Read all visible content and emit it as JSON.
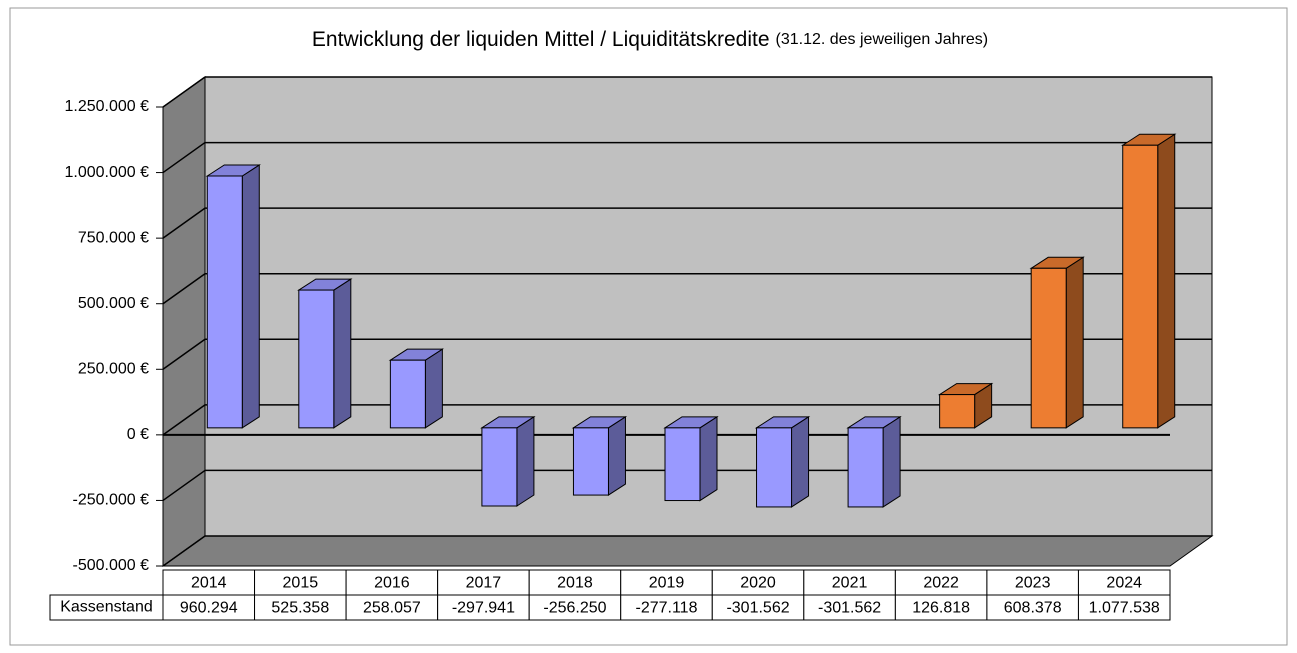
{
  "chart_data": {
    "type": "bar",
    "title": "Entwicklung der liquiden Mittel / Liquiditätskredite",
    "subtitle": "(31.12. des jeweiligen Jahres)",
    "categories": [
      "2014",
      "2015",
      "2016",
      "2017",
      "2018",
      "2019",
      "2020",
      "2021",
      "2022",
      "2023",
      "2024"
    ],
    "series": [
      {
        "name": "Kassenstand",
        "values": [
          960294,
          525358,
          258057,
          -297941,
          -256250,
          -277118,
          -301562,
          -301562,
          126818,
          608378,
          1077538
        ],
        "value_labels": [
          "960.294",
          "525.358",
          "258.057",
          "-297.941",
          "-256.250",
          "-277.118",
          "-301.562",
          "-301.562",
          "126.818",
          "608.378",
          "1.077.538"
        ],
        "colors": [
          "#9999ff",
          "#9999ff",
          "#9999ff",
          "#9999ff",
          "#9999ff",
          "#9999ff",
          "#9999ff",
          "#9999ff",
          "#ed7d31",
          "#ed7d31",
          "#ed7d31"
        ]
      }
    ],
    "ylim": [
      -500000,
      1250000
    ],
    "yticks": [
      {
        "value": -500000,
        "label": "-500.000 €"
      },
      {
        "value": -250000,
        "label": "-250.000 €"
      },
      {
        "value": 0,
        "label": "0 €"
      },
      {
        "value": 250000,
        "label": "250.000 €"
      },
      {
        "value": 500000,
        "label": "500.000 €"
      },
      {
        "value": 750000,
        "label": "750.000 €"
      },
      {
        "value": 1000000,
        "label": "1.000.000 €"
      },
      {
        "value": 1250000,
        "label": "1.250.000 €"
      }
    ],
    "grid": true
  }
}
